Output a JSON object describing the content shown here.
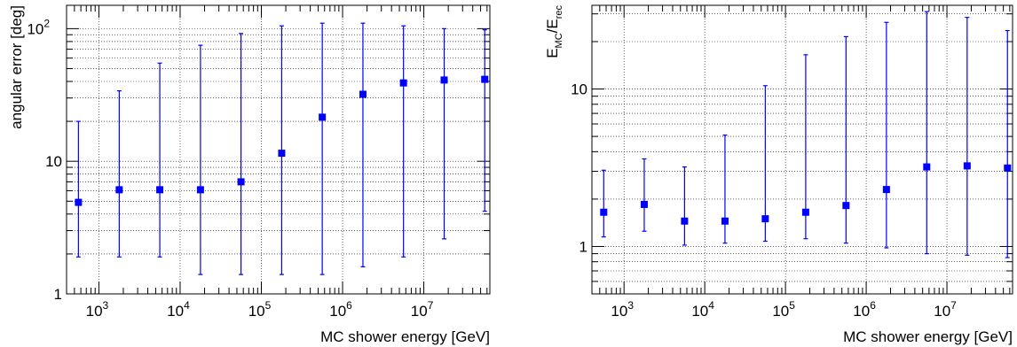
{
  "chart_data": [
    {
      "type": "scatter",
      "title": "",
      "xlabel": "MC shower energy [GeV]",
      "ylabel": "angular error [deg]",
      "x_scale": "log",
      "y_scale": "log",
      "xlim": [
        400,
        65000000
      ],
      "ylim": [
        1,
        150
      ],
      "grid": true,
      "marker_color": "#0000ff",
      "x_ticks": [
        {
          "value": 1000,
          "base": "10",
          "exp": "3"
        },
        {
          "value": 10000,
          "base": "10",
          "exp": "4"
        },
        {
          "value": 100000,
          "base": "10",
          "exp": "5"
        },
        {
          "value": 1000000,
          "base": "10",
          "exp": "6"
        },
        {
          "value": 10000000,
          "base": "10",
          "exp": "7"
        }
      ],
      "y_ticks": [
        {
          "value": 1,
          "base": "1",
          "exp": ""
        },
        {
          "value": 10,
          "base": "10",
          "exp": ""
        },
        {
          "value": 100,
          "base": "10",
          "exp": "2"
        }
      ],
      "points": [
        {
          "x": 560,
          "y": 4.9,
          "lo": 1.9,
          "hi": 20
        },
        {
          "x": 1780,
          "y": 6.1,
          "lo": 1.9,
          "hi": 34
        },
        {
          "x": 5620,
          "y": 6.1,
          "lo": 1.9,
          "hi": 55
        },
        {
          "x": 17800,
          "y": 6.1,
          "lo": 1.4,
          "hi": 75
        },
        {
          "x": 56200,
          "y": 7.0,
          "lo": 1.4,
          "hi": 92
        },
        {
          "x": 178000,
          "y": 11.5,
          "lo": 1.4,
          "hi": 105
        },
        {
          "x": 562000,
          "y": 21.5,
          "lo": 1.4,
          "hi": 110
        },
        {
          "x": 1780000,
          "y": 32,
          "lo": 1.6,
          "hi": 110
        },
        {
          "x": 5620000,
          "y": 39,
          "lo": 1.9,
          "hi": 105
        },
        {
          "x": 17800000,
          "y": 41,
          "lo": 2.6,
          "hi": 100
        },
        {
          "x": 56200000,
          "y": 41.5,
          "lo": 4.2,
          "hi": 98
        }
      ]
    },
    {
      "type": "scatter",
      "title": "",
      "xlabel": "MC shower energy [GeV]",
      "ylabel": "E_MC/E_rec",
      "ylabel_parts": {
        "e1": "E",
        "sub1": "MC",
        "slash": "/E",
        "sub2": "rec"
      },
      "x_scale": "log",
      "y_scale": "log",
      "xlim": [
        400,
        65000000
      ],
      "ylim": [
        0.5,
        34
      ],
      "grid": true,
      "marker_color": "#0000ff",
      "x_ticks": [
        {
          "value": 1000,
          "base": "10",
          "exp": "3"
        },
        {
          "value": 10000,
          "base": "10",
          "exp": "4"
        },
        {
          "value": 100000,
          "base": "10",
          "exp": "5"
        },
        {
          "value": 1000000,
          "base": "10",
          "exp": "6"
        },
        {
          "value": 10000000,
          "base": "10",
          "exp": "7"
        }
      ],
      "y_ticks": [
        {
          "value": 1,
          "base": "1",
          "exp": ""
        },
        {
          "value": 10,
          "base": "10",
          "exp": ""
        }
      ],
      "points": [
        {
          "x": 560,
          "y": 1.65,
          "lo": 1.15,
          "hi": 3.05
        },
        {
          "x": 1780,
          "y": 1.85,
          "lo": 1.25,
          "hi": 3.6
        },
        {
          "x": 5620,
          "y": 1.45,
          "lo": 1.02,
          "hi": 3.2
        },
        {
          "x": 17800,
          "y": 1.45,
          "lo": 1.05,
          "hi": 5.1
        },
        {
          "x": 56200,
          "y": 1.5,
          "lo": 1.08,
          "hi": 10.5
        },
        {
          "x": 178000,
          "y": 1.65,
          "lo": 1.12,
          "hi": 16.5
        },
        {
          "x": 562000,
          "y": 1.82,
          "lo": 1.05,
          "hi": 21.5
        },
        {
          "x": 1780000,
          "y": 2.3,
          "lo": 0.98,
          "hi": 26.5
        },
        {
          "x": 5620000,
          "y": 3.2,
          "lo": 0.9,
          "hi": 31
        },
        {
          "x": 17800000,
          "y": 3.25,
          "lo": 0.88,
          "hi": 28.5
        },
        {
          "x": 56200000,
          "y": 3.15,
          "lo": 0.85,
          "hi": 23.5
        }
      ]
    }
  ]
}
